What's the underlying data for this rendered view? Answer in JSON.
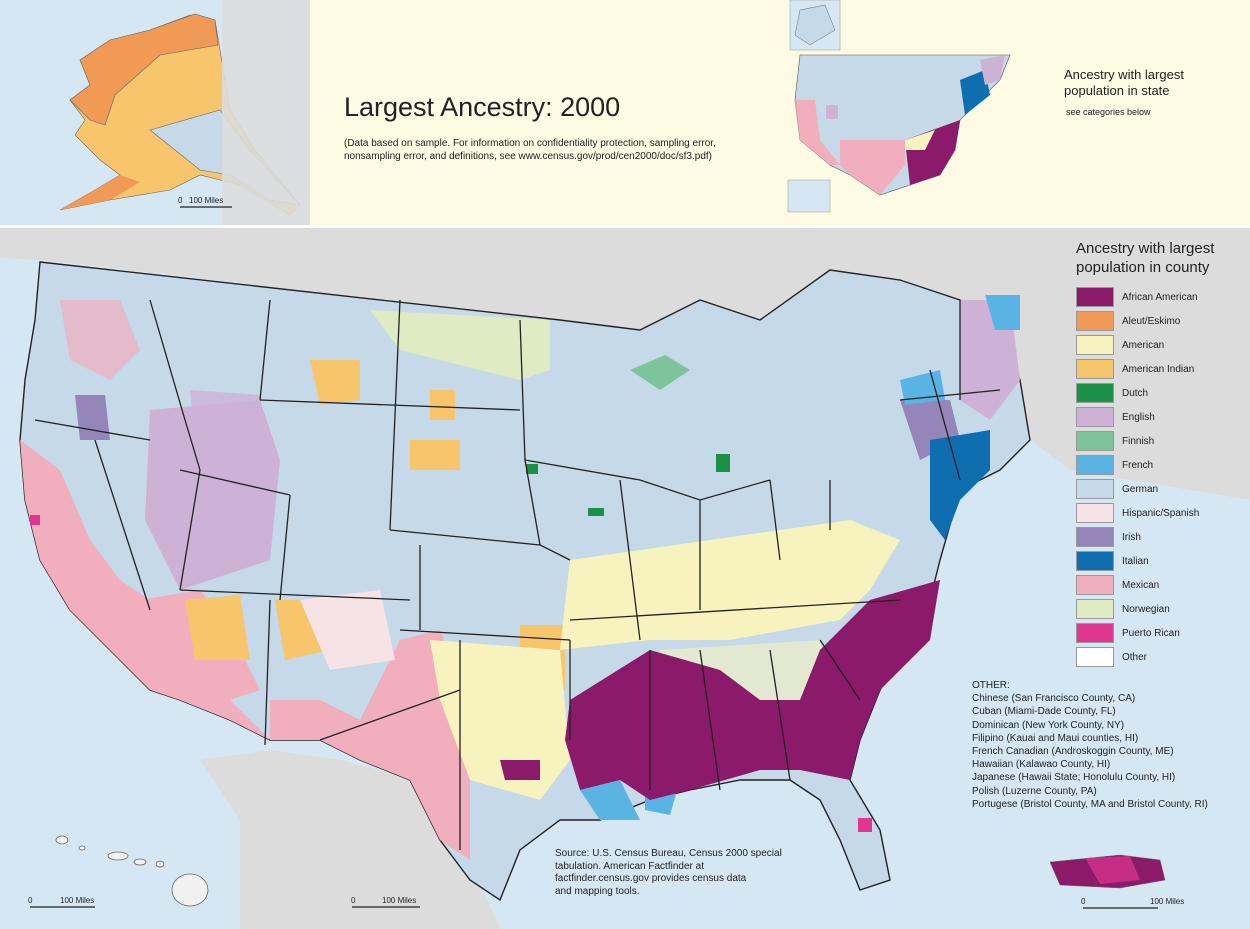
{
  "title": "Largest Ancestry: 2000",
  "subtitle_lines": [
    "(Data based on sample. For information on confidentiality protection, sampling error,",
    "nonsampling error, and definitions, see www.census.gov/prod/cen2000/doc/sf3.pdf)"
  ],
  "state_legend": {
    "title_lines": [
      "Ancestry with largest",
      "population in state"
    ],
    "subtitle": "see categories below"
  },
  "county_legend": {
    "title_lines": [
      "Ancestry with largest",
      "population in county"
    ],
    "items": [
      {
        "label": "African American",
        "color": "#8b1a6b"
      },
      {
        "label": "Aleut/Eskimo",
        "color": "#f19a55"
      },
      {
        "label": "American",
        "color": "#f6f3bf"
      },
      {
        "label": "American Indian",
        "color": "#f7c66c"
      },
      {
        "label": "Dutch",
        "color": "#1a9146"
      },
      {
        "label": "English",
        "color": "#cdb2d6"
      },
      {
        "label": "Finnish",
        "color": "#7ec49a"
      },
      {
        "label": "French",
        "color": "#5ab4e3"
      },
      {
        "label": "German",
        "color": "#c5d9e8"
      },
      {
        "label": "Hispanic/Spanish",
        "color": "#f6e3e6"
      },
      {
        "label": "Irish",
        "color": "#9585b9"
      },
      {
        "label": "Italian",
        "color": "#0f6eb0"
      },
      {
        "label": "Mexican",
        "color": "#f1aebd"
      },
      {
        "label": "Norwegian",
        "color": "#dfebc2"
      },
      {
        "label": "Puerto Rican",
        "color": "#e0368f"
      },
      {
        "label": "Other",
        "color": "#ffffff"
      }
    ]
  },
  "other": {
    "heading": "OTHER:",
    "lines": [
      "Chinese (San Francisco County, CA)",
      "Cuban (Miami-Dade County, FL)",
      "Dominican (New York County, NY)",
      "Filipino (Kauai and Maui counties, HI)",
      "French Canadian (Androskoggin County, ME)",
      "Hawaiian (Kalawao County, HI)",
      "Japanese (Hawaii State; Honolulu County, HI)",
      "Polish (Luzerne County, PA)",
      "Portugese (Bristol County, MA and Bristol County, RI)"
    ]
  },
  "source_lines": [
    "Source: U.S. Census Bureau, Census 2000 special",
    "tabulation. American Factfinder at",
    "factfinder.census.gov provides census data",
    "and mapping tools."
  ],
  "scales": {
    "alaska": {
      "zero": "0",
      "label": "100 Miles"
    },
    "hawaii": {
      "zero": "0",
      "label": "100 Miles"
    },
    "mainland": {
      "zero": "0",
      "label": "100 Miles"
    },
    "puerto_rico": {
      "zero": "0",
      "label": "100 Miles"
    }
  },
  "colors": {
    "water": "#d6e7f4",
    "panel_cream": "#fdfbe3",
    "land_gray": "#dcdcdc",
    "border": "#222222"
  }
}
